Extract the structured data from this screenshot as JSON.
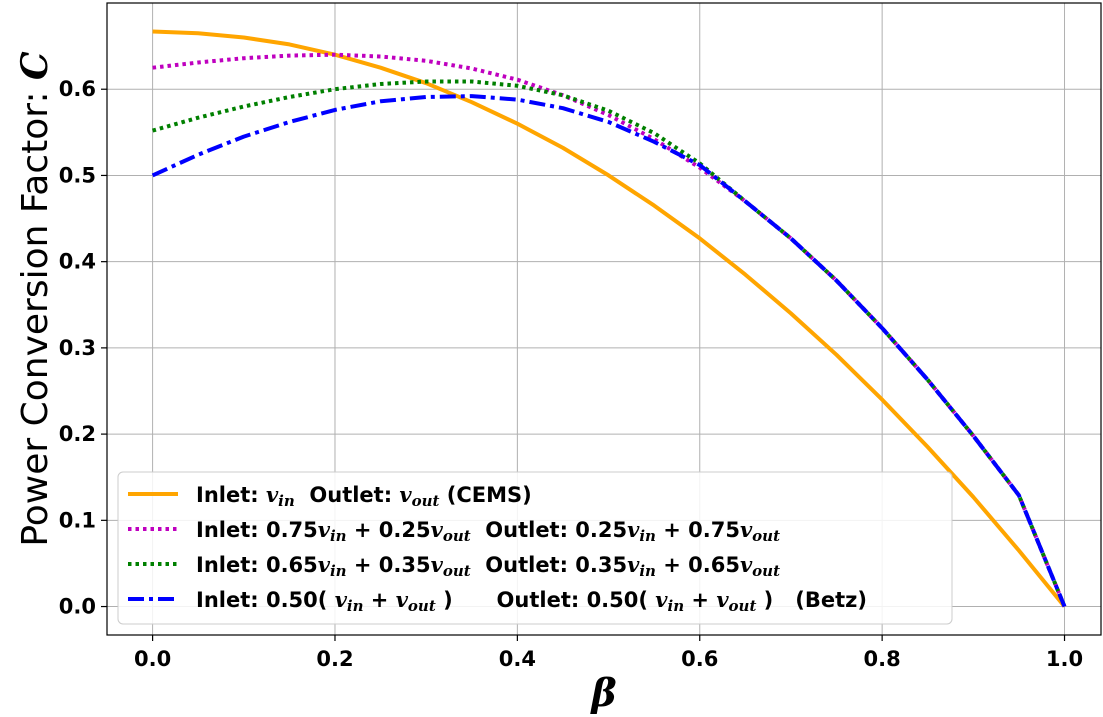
{
  "chart_data": {
    "type": "line",
    "title": "",
    "xlabel": "β",
    "ylabel": {
      "prefix": "Power Conversion Factor: ",
      "symbol": "C"
    },
    "xlim": [
      -0.05,
      1.04
    ],
    "ylim": [
      -0.033,
      0.7
    ],
    "x_ticks": [
      0.0,
      0.2,
      0.4,
      0.6,
      0.8,
      1.0
    ],
    "y_ticks": [
      0.0,
      0.1,
      0.2,
      0.3,
      0.4,
      0.5,
      0.6
    ],
    "grid": true,
    "legend": {
      "placement": "lower-left"
    },
    "x": [
      0.0,
      0.05,
      0.1,
      0.15,
      0.2,
      0.25,
      0.3,
      0.35,
      0.4,
      0.45,
      0.5,
      0.55,
      0.6,
      0.65,
      0.7,
      0.75,
      0.8,
      0.85,
      0.9,
      0.95,
      1.0
    ],
    "series": [
      {
        "label_parts": [
          {
            "t": "Inlet: ",
            "m": false
          },
          {
            "t": "v",
            "m": true
          },
          {
            "t": "in",
            "m": true,
            "sub": true
          },
          {
            "t": "  Outlet: ",
            "m": false
          },
          {
            "t": "v",
            "m": true
          },
          {
            "t": "out",
            "m": true,
            "sub": true
          },
          {
            "t": " (CEMS)",
            "m": false
          }
        ],
        "color": "#FFA500",
        "dash": "solid",
        "values": [
          0.667,
          0.665,
          0.66,
          0.652,
          0.64,
          0.625,
          0.607,
          0.585,
          0.56,
          0.532,
          0.5,
          0.465,
          0.427,
          0.385,
          0.34,
          0.292,
          0.24,
          0.185,
          0.127,
          0.065,
          0.0
        ]
      },
      {
        "label_parts": [
          {
            "t": "Inlet: 0.75",
            "m": false
          },
          {
            "t": "v",
            "m": true
          },
          {
            "t": "in",
            "m": true,
            "sub": true
          },
          {
            "t": " + 0.25",
            "m": false
          },
          {
            "t": "v",
            "m": true
          },
          {
            "t": "out",
            "m": true,
            "sub": true
          },
          {
            "t": "  Outlet: 0.25",
            "m": false
          },
          {
            "t": "v",
            "m": true
          },
          {
            "t": "in",
            "m": true,
            "sub": true
          },
          {
            "t": " + 0.75",
            "m": false
          },
          {
            "t": "v",
            "m": true
          },
          {
            "t": "out",
            "m": true,
            "sub": true
          }
        ],
        "color": "#BF00BF",
        "dash": "dotted",
        "values": [
          0.625,
          0.631,
          0.636,
          0.639,
          0.64,
          0.638,
          0.633,
          0.624,
          0.611,
          0.593,
          0.57,
          0.542,
          0.509,
          0.47,
          0.427,
          0.378,
          0.323,
          0.263,
          0.198,
          0.129,
          0.0
        ]
      },
      {
        "label_parts": [
          {
            "t": "Inlet: 0.65",
            "m": false
          },
          {
            "t": "v",
            "m": true
          },
          {
            "t": "in",
            "m": true,
            "sub": true
          },
          {
            "t": " + 0.35",
            "m": false
          },
          {
            "t": "v",
            "m": true
          },
          {
            "t": "out",
            "m": true,
            "sub": true
          },
          {
            "t": "  Outlet: 0.35",
            "m": false
          },
          {
            "t": "v",
            "m": true
          },
          {
            "t": "in",
            "m": true,
            "sub": true
          },
          {
            "t": " + 0.65",
            "m": false
          },
          {
            "t": "v",
            "m": true
          },
          {
            "t": "out",
            "m": true,
            "sub": true
          }
        ],
        "color": "#008000",
        "dash": "dotted",
        "values": [
          0.552,
          0.567,
          0.58,
          0.591,
          0.6,
          0.606,
          0.609,
          0.609,
          0.604,
          0.593,
          0.575,
          0.549,
          0.514,
          0.47,
          0.427,
          0.378,
          0.323,
          0.263,
          0.198,
          0.129,
          0.0
        ]
      },
      {
        "label_parts": [
          {
            "t": "Inlet: 0.50( ",
            "m": false
          },
          {
            "t": "v",
            "m": true
          },
          {
            "t": "in",
            "m": true,
            "sub": true
          },
          {
            "t": " + ",
            "m": false
          },
          {
            "t": "v",
            "m": true
          },
          {
            "t": "out",
            "m": true,
            "sub": true
          },
          {
            "t": " )      Outlet: 0.50( ",
            "m": false
          },
          {
            "t": "v",
            "m": true
          },
          {
            "t": "in",
            "m": true,
            "sub": true
          },
          {
            "t": " + ",
            "m": false
          },
          {
            "t": "v",
            "m": true
          },
          {
            "t": "out",
            "m": true,
            "sub": true
          },
          {
            "t": " )   (Betz)",
            "m": false
          }
        ],
        "color": "#0000FF",
        "dash": "dashdot",
        "values": [
          0.5,
          0.524,
          0.545,
          0.562,
          0.576,
          0.586,
          0.591,
          0.592,
          0.588,
          0.578,
          0.562,
          0.539,
          0.512,
          0.47,
          0.427,
          0.378,
          0.323,
          0.263,
          0.198,
          0.129,
          0.0
        ]
      }
    ]
  }
}
